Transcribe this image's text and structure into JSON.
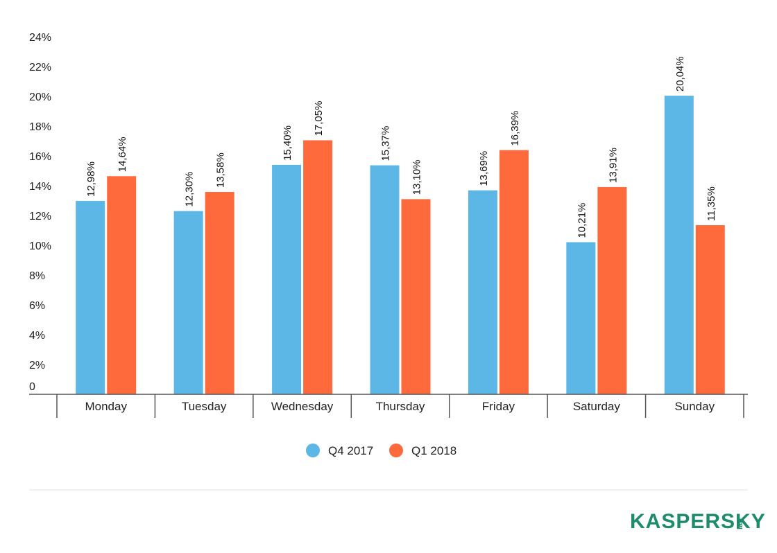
{
  "chart_data": {
    "type": "bar",
    "categories": [
      "Monday",
      "Tuesday",
      "Wednesday",
      "Thursday",
      "Friday",
      "Saturday",
      "Sunday"
    ],
    "series": [
      {
        "name": "Q4 2017",
        "color": "#5db7e6",
        "values": [
          12.98,
          12.3,
          15.4,
          15.37,
          13.69,
          10.21,
          20.04
        ],
        "labels": [
          "12,98%",
          "12,30%",
          "15,40%",
          "15,37%",
          "13,69%",
          "10,21%",
          "20,04%"
        ]
      },
      {
        "name": "Q1 2018",
        "color": "#ff6a3d",
        "values": [
          14.64,
          13.58,
          17.05,
          13.1,
          16.39,
          13.91,
          11.35
        ],
        "labels": [
          "14,64%",
          "13,58%",
          "17,05%",
          "13,10%",
          "16,39%",
          "13,91%",
          "11,35%"
        ]
      }
    ],
    "ylim": [
      0,
      24
    ],
    "yticks": [
      0,
      2,
      4,
      6,
      8,
      10,
      12,
      14,
      16,
      18,
      20,
      22,
      24
    ],
    "ytick_labels": [
      "0",
      "2%",
      "4%",
      "6%",
      "8%",
      "10%",
      "12%",
      "14%",
      "16%",
      "18%",
      "20%",
      "22%",
      "24%"
    ],
    "title": "",
    "xlabel": "",
    "ylabel": "",
    "grid": false,
    "legend_position": "bottom-center"
  },
  "logo": {
    "text": "KASPERSKY",
    "sub": "lab"
  }
}
